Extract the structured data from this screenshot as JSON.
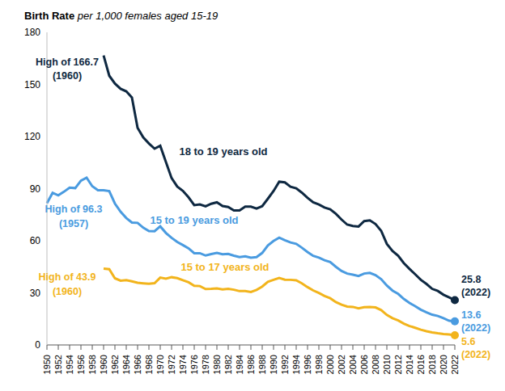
{
  "chart_data": {
    "type": "line",
    "title": "Birth Rate",
    "subtitle": "per 1,000 females aged 15-19",
    "x": [
      1950,
      1951,
      1952,
      1953,
      1954,
      1955,
      1956,
      1957,
      1958,
      1959,
      1960,
      1961,
      1962,
      1963,
      1964,
      1965,
      1966,
      1967,
      1968,
      1969,
      1970,
      1971,
      1972,
      1973,
      1974,
      1975,
      1976,
      1977,
      1978,
      1979,
      1980,
      1981,
      1982,
      1983,
      1984,
      1985,
      1986,
      1987,
      1988,
      1989,
      1990,
      1991,
      1992,
      1993,
      1994,
      1995,
      1996,
      1997,
      1998,
      1999,
      2000,
      2001,
      2002,
      2003,
      2004,
      2005,
      2006,
      2007,
      2008,
      2009,
      2010,
      2011,
      2012,
      2013,
      2014,
      2015,
      2016,
      2017,
      2018,
      2019,
      2020,
      2021,
      2022
    ],
    "series": [
      {
        "name": "18 to 19 years old",
        "color": "#0e2841",
        "values": [
          null,
          null,
          null,
          null,
          null,
          null,
          null,
          null,
          null,
          null,
          166.7,
          155.0,
          150.5,
          147.5,
          146.0,
          142.5,
          125.0,
          119.5,
          116.0,
          113.0,
          114.7,
          105.3,
          96.1,
          91.2,
          88.7,
          85.0,
          80.5,
          80.9,
          79.8,
          81.3,
          82.1,
          80.0,
          79.4,
          77.4,
          77.4,
          79.6,
          79.6,
          78.5,
          79.9,
          84.2,
          88.6,
          94.0,
          93.6,
          91.1,
          90.2,
          87.7,
          84.7,
          82.1,
          80.9,
          79.1,
          78.1,
          75.5,
          72.2,
          69.3,
          68.5,
          68.2,
          71.3,
          71.7,
          69.6,
          65.7,
          58.2,
          54.1,
          51.4,
          47.1,
          43.8,
          40.7,
          37.5,
          35.1,
          32.3,
          31.1,
          28.9,
          27.4,
          25.8
        ]
      },
      {
        "name": "15 to 19 years old",
        "color": "#4a9be0",
        "values": [
          81.6,
          87.6,
          86.1,
          88.2,
          90.6,
          90.3,
          94.6,
          96.3,
          91.4,
          89.1,
          89.1,
          88.6,
          81.4,
          76.7,
          73.1,
          70.5,
          70.3,
          67.5,
          65.6,
          65.5,
          68.3,
          64.5,
          61.7,
          59.3,
          57.5,
          55.6,
          52.8,
          52.8,
          51.5,
          52.3,
          53.0,
          52.2,
          52.4,
          51.4,
          50.6,
          51.0,
          50.2,
          50.6,
          53.0,
          57.3,
          59.9,
          61.8,
          60.3,
          59.0,
          58.2,
          56.0,
          53.5,
          51.3,
          50.3,
          48.8,
          47.7,
          45.0,
          42.6,
          41.1,
          40.5,
          39.7,
          41.1,
          41.5,
          40.2,
          37.9,
          34.2,
          31.3,
          29.4,
          26.5,
          24.2,
          22.3,
          20.3,
          18.8,
          17.4,
          16.7,
          15.4,
          13.9,
          13.6
        ]
      },
      {
        "name": "15 to 17 years old",
        "color": "#f2b41c",
        "values": [
          null,
          null,
          null,
          null,
          null,
          null,
          null,
          null,
          null,
          null,
          43.9,
          43.6,
          38.4,
          37.0,
          37.3,
          36.6,
          35.8,
          35.5,
          35.2,
          35.6,
          38.8,
          38.2,
          39.0,
          38.5,
          37.3,
          36.1,
          34.1,
          33.9,
          32.2,
          32.3,
          32.5,
          32.0,
          32.3,
          31.8,
          31.0,
          31.0,
          30.5,
          31.7,
          33.6,
          36.4,
          37.5,
          38.6,
          37.6,
          37.5,
          37.2,
          35.5,
          33.3,
          31.4,
          29.9,
          28.2,
          26.9,
          24.7,
          23.2,
          22.1,
          21.9,
          21.1,
          21.7,
          21.9,
          21.6,
          20.1,
          17.3,
          15.4,
          14.1,
          12.3,
          10.9,
          9.9,
          8.8,
          7.9,
          7.2,
          6.7,
          6.3,
          6.0,
          5.6
        ]
      }
    ],
    "xlim": [
      1950,
      2022
    ],
    "xticks": [
      1950,
      1952,
      1954,
      1956,
      1958,
      1960,
      1962,
      1964,
      1966,
      1968,
      1970,
      1972,
      1974,
      1976,
      1978,
      1980,
      1982,
      1984,
      1986,
      1988,
      1990,
      1992,
      1994,
      1996,
      1998,
      2000,
      2002,
      2004,
      2006,
      2008,
      2010,
      2012,
      2014,
      2016,
      2018,
      2020,
      2022
    ],
    "ylim": [
      0,
      180
    ],
    "yticks": [
      0,
      30,
      60,
      90,
      120,
      150,
      180
    ],
    "grid": false,
    "annotations": [
      {
        "lines": [
          "High of 166.7",
          "(1960)"
        ],
        "x": 1960,
        "y": 166.7,
        "color": "#0e2841"
      },
      {
        "lines": [
          "High of 96.3",
          "(1957)"
        ],
        "x": 1957,
        "y": 96.3,
        "color": "#4a9be0"
      },
      {
        "lines": [
          "High of 43.9",
          "(1960)"
        ],
        "x": 1960,
        "y": 43.9,
        "color": "#f2b41c"
      },
      {
        "lines": [
          "25.8",
          "(2022)"
        ],
        "x": 2022,
        "y": 25.8,
        "color": "#0e2841"
      },
      {
        "lines": [
          "13.6",
          "(2022)"
        ],
        "x": 2022,
        "y": 13.6,
        "color": "#4a9be0"
      },
      {
        "lines": [
          "5.6",
          "(2022)"
        ],
        "x": 2022,
        "y": 5.6,
        "color": "#f2b41c"
      }
    ]
  }
}
